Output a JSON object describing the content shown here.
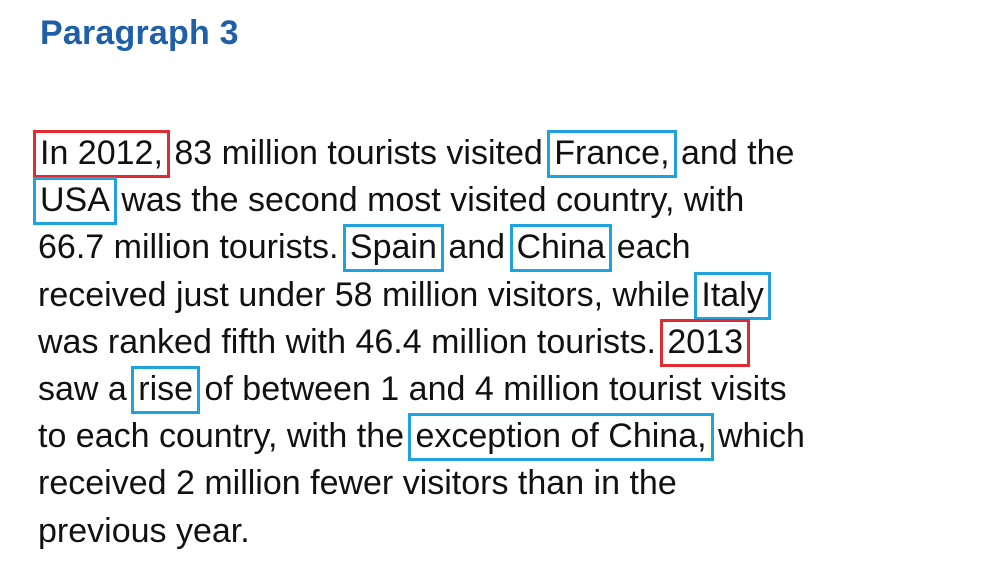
{
  "heading": "Paragraph 3",
  "colors": {
    "heading": "#1f5fa8",
    "text": "#111111",
    "highlight_time": "#e02b33",
    "highlight_key": "#1ea3de"
  },
  "lines": [
    [
      {
        "text": "In 2012,",
        "box": "red"
      },
      {
        "text": " 83 million tourists visited "
      },
      {
        "text": "France,",
        "box": "blue"
      },
      {
        "text": " and the"
      }
    ],
    [
      {
        "text": "USA",
        "box": "blue"
      },
      {
        "text": " was the second most visited country, with"
      }
    ],
    [
      {
        "text": "66.7 million tourists. "
      },
      {
        "text": "Spain",
        "box": "blue"
      },
      {
        "text": " and "
      },
      {
        "text": "China",
        "box": "blue"
      },
      {
        "text": " each"
      }
    ],
    [
      {
        "text": "received just under 58 million visitors, while "
      },
      {
        "text": "Italy",
        "box": "blue"
      }
    ],
    [
      {
        "text": "was ranked fifth with 46.4 million tourists. "
      },
      {
        "text": "2013",
        "box": "red"
      }
    ],
    [
      {
        "text": "saw a "
      },
      {
        "text": "rise",
        "box": "blue"
      },
      {
        "text": " of between 1 and 4 million tourist visits"
      }
    ],
    [
      {
        "text": "to each country, with the "
      },
      {
        "text": "exception of China,",
        "box": "blue"
      },
      {
        "text": " which"
      }
    ],
    [
      {
        "text": "received 2 million fewer visitors than in the"
      }
    ],
    [
      {
        "text": "previous year."
      }
    ]
  ]
}
